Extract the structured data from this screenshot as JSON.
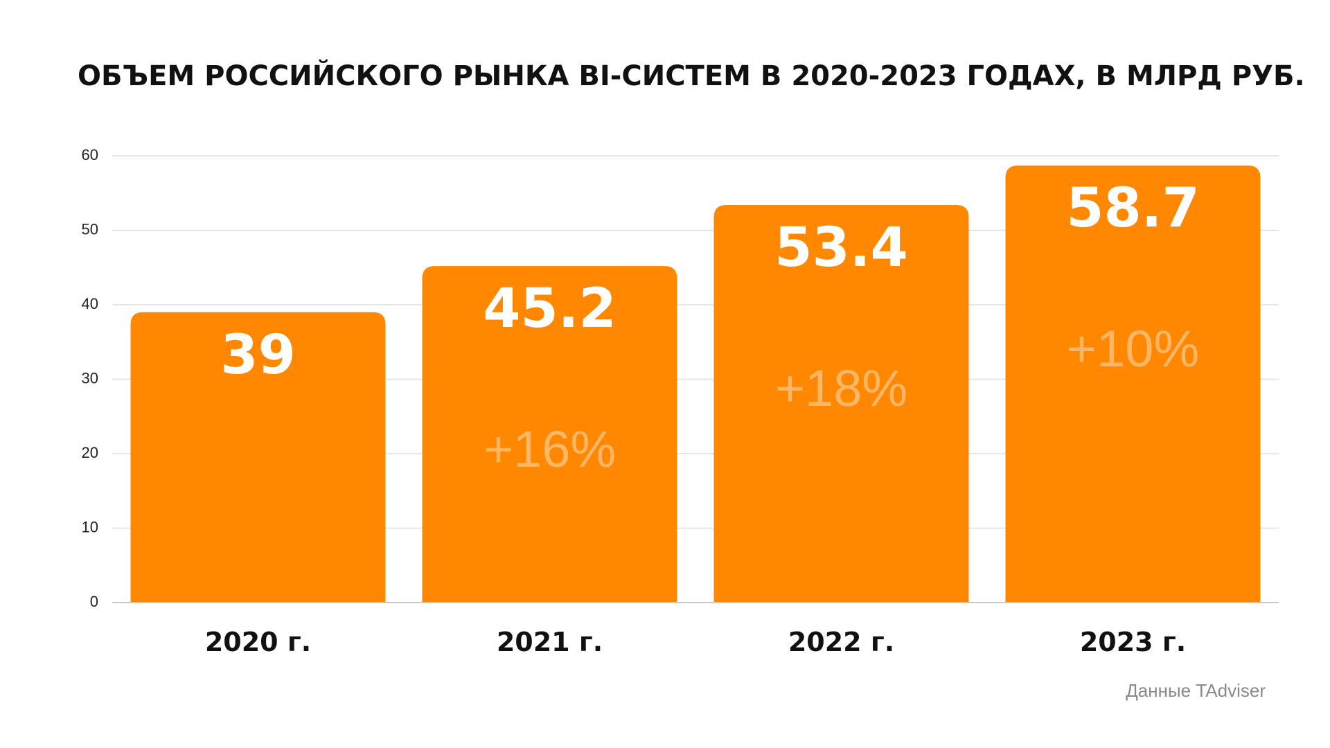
{
  "chart_data": {
    "type": "bar",
    "title": "ОБЪЕМ РОССИЙСКОГО РЫНКА BI-СИСТЕМ В 2020-2023 ГОДАХ, В МЛРД РУБ.",
    "categories": [
      "2020 г.",
      "2021 г.",
      "2022 г.",
      "2023 г."
    ],
    "values": [
      39,
      45.2,
      53.4,
      58.7
    ],
    "value_labels": [
      "39",
      "45.2",
      "53.4",
      "58.7"
    ],
    "growth_labels": [
      "",
      "+16%",
      "+18%",
      "+10%"
    ],
    "ylim": [
      0,
      60
    ],
    "yticks": [
      0,
      10,
      20,
      30,
      40,
      50,
      60
    ],
    "grid": true,
    "xlabel": "",
    "ylabel": "",
    "bar_color": "#ff8800"
  },
  "source": "Данные TAdviser"
}
